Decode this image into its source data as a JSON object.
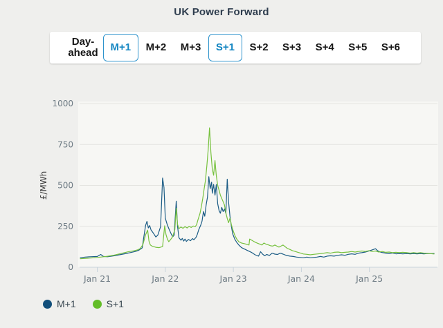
{
  "title": "UK Power Forward",
  "tabs": {
    "items": [
      {
        "label": "Day-ahead",
        "selected": false
      },
      {
        "label": "M+1",
        "selected": true
      },
      {
        "label": "M+2",
        "selected": false
      },
      {
        "label": "M+3",
        "selected": false
      },
      {
        "label": "S+1",
        "selected": true
      },
      {
        "label": "S+2",
        "selected": false
      },
      {
        "label": "S+3",
        "selected": false
      },
      {
        "label": "S+4",
        "selected": false
      },
      {
        "label": "S+5",
        "selected": false
      },
      {
        "label": "S+6",
        "selected": false
      }
    ]
  },
  "colors": {
    "page_bg": "#efefed",
    "plot_bg": "#f7f7f4",
    "grid": "#e4e4e0",
    "axis": "#c8d3db",
    "tick_label": "#6e7b84",
    "accent_blue": "#1486c2",
    "title_text": "#2e3d4e"
  },
  "chart_data": {
    "type": "line",
    "title": "UK Power Forward",
    "ylabel": "£/MWh",
    "ylim": [
      0,
      1000
    ],
    "yticks": [
      0,
      250,
      500,
      750,
      1000
    ],
    "x_axis": {
      "unit": "days relative to Jan 21",
      "xlim": [
        -0.26,
        4.98
      ],
      "tick_positions": [
        0,
        1,
        2,
        3,
        4
      ],
      "tick_labels": [
        "Jan 21",
        "Jan 22",
        "Jan 23",
        "Jan 24",
        "Jan 25"
      ]
    },
    "grid": "horizontal",
    "legend_position": "bottom-left",
    "series": [
      {
        "name": "M+1",
        "color": "#1b5c85",
        "dot_color": "#114e7a",
        "points": [
          [
            -0.25,
            58
          ],
          [
            -0.18,
            62
          ],
          [
            -0.1,
            64
          ],
          [
            0.0,
            66
          ],
          [
            0.05,
            78
          ],
          [
            0.09,
            66
          ],
          [
            0.15,
            64
          ],
          [
            0.25,
            70
          ],
          [
            0.35,
            78
          ],
          [
            0.45,
            86
          ],
          [
            0.56,
            96
          ],
          [
            0.61,
            104
          ],
          [
            0.66,
            118
          ],
          [
            0.71,
            255
          ],
          [
            0.73,
            280
          ],
          [
            0.75,
            240
          ],
          [
            0.77,
            255
          ],
          [
            0.79,
            228
          ],
          [
            0.83,
            205
          ],
          [
            0.86,
            185
          ],
          [
            0.89,
            196
          ],
          [
            0.93,
            248
          ],
          [
            0.96,
            545
          ],
          [
            0.98,
            488
          ],
          [
            1.0,
            300
          ],
          [
            1.03,
            258
          ],
          [
            1.06,
            228
          ],
          [
            1.09,
            200
          ],
          [
            1.11,
            186
          ],
          [
            1.13,
            196
          ],
          [
            1.16,
            404
          ],
          [
            1.18,
            250
          ],
          [
            1.2,
            180
          ],
          [
            1.23,
            165
          ],
          [
            1.25,
            176
          ],
          [
            1.27,
            160
          ],
          [
            1.29,
            172
          ],
          [
            1.31,
            158
          ],
          [
            1.34,
            170
          ],
          [
            1.37,
            162
          ],
          [
            1.4,
            175
          ],
          [
            1.42,
            168
          ],
          [
            1.45,
            182
          ],
          [
            1.47,
            200
          ],
          [
            1.49,
            228
          ],
          [
            1.52,
            256
          ],
          [
            1.54,
            282
          ],
          [
            1.56,
            340
          ],
          [
            1.58,
            312
          ],
          [
            1.6,
            380
          ],
          [
            1.62,
            430
          ],
          [
            1.64,
            553
          ],
          [
            1.66,
            480
          ],
          [
            1.68,
            520
          ],
          [
            1.69,
            452
          ],
          [
            1.71,
            506
          ],
          [
            1.73,
            440
          ],
          [
            1.75,
            505
          ],
          [
            1.77,
            388
          ],
          [
            1.79,
            346
          ],
          [
            1.81,
            330
          ],
          [
            1.83,
            366
          ],
          [
            1.85,
            340
          ],
          [
            1.87,
            356
          ],
          [
            1.89,
            330
          ],
          [
            1.91,
            538
          ],
          [
            1.93,
            400
          ],
          [
            1.95,
            312
          ],
          [
            1.97,
            252
          ],
          [
            1.99,
            205
          ],
          [
            2.02,
            172
          ],
          [
            2.05,
            152
          ],
          [
            2.08,
            136
          ],
          [
            2.12,
            120
          ],
          [
            2.17,
            110
          ],
          [
            2.22,
            100
          ],
          [
            2.27,
            90
          ],
          [
            2.32,
            76
          ],
          [
            2.37,
            68
          ],
          [
            2.4,
            95
          ],
          [
            2.43,
            80
          ],
          [
            2.46,
            70
          ],
          [
            2.49,
            78
          ],
          [
            2.53,
            72
          ],
          [
            2.57,
            86
          ],
          [
            2.61,
            80
          ],
          [
            2.65,
            78
          ],
          [
            2.69,
            86
          ],
          [
            2.73,
            80
          ],
          [
            2.78,
            72
          ],
          [
            2.83,
            68
          ],
          [
            2.88,
            66
          ],
          [
            2.93,
            62
          ],
          [
            2.98,
            60
          ],
          [
            3.03,
            58
          ],
          [
            3.08,
            62
          ],
          [
            3.13,
            58
          ],
          [
            3.18,
            60
          ],
          [
            3.23,
            62
          ],
          [
            3.28,
            66
          ],
          [
            3.33,
            62
          ],
          [
            3.38,
            68
          ],
          [
            3.43,
            70
          ],
          [
            3.48,
            68
          ],
          [
            3.54,
            73
          ],
          [
            3.59,
            76
          ],
          [
            3.64,
            73
          ],
          [
            3.69,
            79
          ],
          [
            3.74,
            82
          ],
          [
            3.79,
            79
          ],
          [
            3.84,
            86
          ],
          [
            3.89,
            89
          ],
          [
            3.94,
            93
          ],
          [
            3.99,
            99
          ],
          [
            4.04,
            106
          ],
          [
            4.09,
            113
          ],
          [
            4.12,
            101
          ],
          [
            4.16,
            93
          ],
          [
            4.2,
            89
          ],
          [
            4.24,
            86
          ],
          [
            4.29,
            84
          ],
          [
            4.34,
            87
          ],
          [
            4.39,
            82
          ],
          [
            4.44,
            84
          ],
          [
            4.49,
            82
          ],
          [
            4.55,
            84
          ],
          [
            4.6,
            82
          ],
          [
            4.65,
            84
          ],
          [
            4.7,
            82
          ],
          [
            4.75,
            84
          ],
          [
            4.8,
            82
          ],
          [
            4.85,
            84
          ],
          [
            4.9,
            83
          ],
          [
            4.95,
            84
          ]
        ]
      },
      {
        "name": "S+1",
        "color": "#76c13d",
        "dot_color": "#63bd28",
        "points": [
          [
            -0.25,
            52
          ],
          [
            -0.15,
            55
          ],
          [
            -0.05,
            58
          ],
          [
            0.05,
            62
          ],
          [
            0.15,
            67
          ],
          [
            0.25,
            74
          ],
          [
            0.35,
            84
          ],
          [
            0.45,
            94
          ],
          [
            0.53,
            100
          ],
          [
            0.59,
            106
          ],
          [
            0.63,
            114
          ],
          [
            0.67,
            138
          ],
          [
            0.71,
            198
          ],
          [
            0.74,
            227
          ],
          [
            0.76,
            160
          ],
          [
            0.78,
            136
          ],
          [
            0.81,
            128
          ],
          [
            0.86,
            122
          ],
          [
            0.91,
            120
          ],
          [
            0.96,
            126
          ],
          [
            0.99,
            253
          ],
          [
            1.01,
            200
          ],
          [
            1.03,
            172
          ],
          [
            1.05,
            156
          ],
          [
            1.07,
            165
          ],
          [
            1.09,
            176
          ],
          [
            1.11,
            190
          ],
          [
            1.14,
            230
          ],
          [
            1.16,
            360
          ],
          [
            1.18,
            262
          ],
          [
            1.2,
            236
          ],
          [
            1.23,
            246
          ],
          [
            1.26,
            238
          ],
          [
            1.29,
            248
          ],
          [
            1.32,
            240
          ],
          [
            1.35,
            250
          ],
          [
            1.38,
            243
          ],
          [
            1.41,
            252
          ],
          [
            1.44,
            248
          ],
          [
            1.46,
            260
          ],
          [
            1.48,
            290
          ],
          [
            1.51,
            330
          ],
          [
            1.53,
            370
          ],
          [
            1.55,
            420
          ],
          [
            1.57,
            478
          ],
          [
            1.59,
            530
          ],
          [
            1.61,
            618
          ],
          [
            1.63,
            720
          ],
          [
            1.65,
            852
          ],
          [
            1.67,
            700
          ],
          [
            1.69,
            600
          ],
          [
            1.71,
            562
          ],
          [
            1.73,
            652
          ],
          [
            1.75,
            560
          ],
          [
            1.77,
            500
          ],
          [
            1.79,
            470
          ],
          [
            1.81,
            440
          ],
          [
            1.83,
            420
          ],
          [
            1.85,
            400
          ],
          [
            1.87,
            380
          ],
          [
            1.89,
            332
          ],
          [
            1.91,
            298
          ],
          [
            1.93,
            272
          ],
          [
            1.95,
            300
          ],
          [
            1.97,
            262
          ],
          [
            1.99,
            232
          ],
          [
            2.02,
            196
          ],
          [
            2.05,
            172
          ],
          [
            2.08,
            156
          ],
          [
            2.12,
            148
          ],
          [
            2.17,
            143
          ],
          [
            2.2,
            139
          ],
          [
            2.23,
            136
          ],
          [
            2.24,
            172
          ],
          [
            2.27,
            165
          ],
          [
            2.3,
            158
          ],
          [
            2.33,
            151
          ],
          [
            2.36,
            146
          ],
          [
            2.39,
            141
          ],
          [
            2.42,
            136
          ],
          [
            2.45,
            148
          ],
          [
            2.48,
            141
          ],
          [
            2.52,
            136
          ],
          [
            2.55,
            131
          ],
          [
            2.58,
            129
          ],
          [
            2.61,
            136
          ],
          [
            2.64,
            129
          ],
          [
            2.67,
            123
          ],
          [
            2.7,
            129
          ],
          [
            2.73,
            136
          ],
          [
            2.76,
            126
          ],
          [
            2.79,
            116
          ],
          [
            2.83,
            109
          ],
          [
            2.87,
            101
          ],
          [
            2.91,
            96
          ],
          [
            2.95,
            91
          ],
          [
            2.99,
            86
          ],
          [
            3.03,
            81
          ],
          [
            3.08,
            79
          ],
          [
            3.13,
            76
          ],
          [
            3.18,
            79
          ],
          [
            3.23,
            81
          ],
          [
            3.28,
            83
          ],
          [
            3.33,
            86
          ],
          [
            3.38,
            89
          ],
          [
            3.43,
            86
          ],
          [
            3.48,
            91
          ],
          [
            3.54,
            93
          ],
          [
            3.59,
            89
          ],
          [
            3.64,
            91
          ],
          [
            3.69,
            93
          ],
          [
            3.74,
            96
          ],
          [
            3.79,
            93
          ],
          [
            3.84,
            96
          ],
          [
            3.89,
            99
          ],
          [
            3.94,
            96
          ],
          [
            3.99,
            101
          ],
          [
            4.04,
            96
          ],
          [
            4.09,
            99
          ],
          [
            4.14,
            93
          ],
          [
            4.19,
            96
          ],
          [
            4.24,
            91
          ],
          [
            4.29,
            93
          ],
          [
            4.34,
            89
          ],
          [
            4.39,
            91
          ],
          [
            4.44,
            89
          ],
          [
            4.49,
            91
          ],
          [
            4.55,
            89
          ],
          [
            4.6,
            86
          ],
          [
            4.65,
            89
          ],
          [
            4.7,
            86
          ],
          [
            4.75,
            89
          ],
          [
            4.8,
            86
          ],
          [
            4.85,
            85
          ],
          [
            4.9,
            83
          ],
          [
            4.95,
            81
          ]
        ]
      }
    ]
  }
}
